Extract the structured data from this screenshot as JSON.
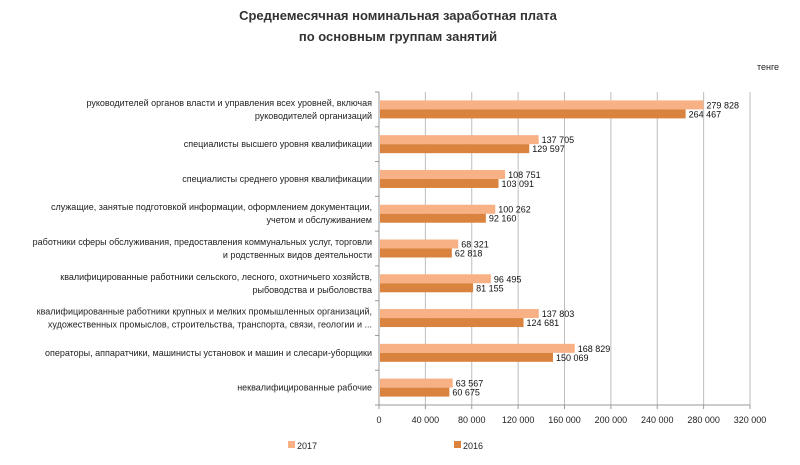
{
  "chart_data": {
    "type": "bar",
    "orientation": "horizontal",
    "title": [
      "Среднемесячная номинальная  заработная плата",
      "по основным группам занятий"
    ],
    "unit_label": "тенге",
    "categories": [
      [
        "руководителей органов власти и управления всех уровней, включая",
        "руководителей организаций"
      ],
      [
        "специалисты высшего уровня квалификации"
      ],
      [
        "специалисты среднего уровня квалификации"
      ],
      [
        "служащие, занятые подготовкой информации, оформлением документации,",
        "учетом и обслуживанием"
      ],
      [
        "работники сферы обслуживания, предоставления коммунальных услуг, торговли",
        "и родственных видов деятельности"
      ],
      [
        "квалифицированные работники сельского, лесного, охотничьего хозяйств,",
        "рыбоводства и рыболовства"
      ],
      [
        "квалифицированные работники крупных и мелких промышленных организаций,",
        "художественных промыслов, строительства, транспорта, связи, геологии и ..."
      ],
      [
        "операторы, аппаратчики, машинисты установок и машин и слесари-уборщики"
      ],
      [
        "неквалифицированные рабочие"
      ]
    ],
    "series": [
      {
        "name": "2017",
        "color": "#F8B185",
        "values": [
          279828,
          137705,
          108751,
          100262,
          68321,
          96495,
          137803,
          168829,
          63567
        ],
        "labels": [
          "279 828",
          "137 705",
          "108 751",
          "100 262",
          "68 321",
          "96 495",
          "137 803",
          "168 829",
          "63 567"
        ]
      },
      {
        "name": "2016",
        "color": "#D9833E",
        "values": [
          264467,
          129597,
          103091,
          92160,
          62818,
          81155,
          124681,
          150069,
          60675
        ],
        "labels": [
          "264 467",
          "129 597",
          "103 091",
          "92 160",
          "62 818",
          "81 155",
          "124 681",
          "150 069",
          "60 675"
        ]
      }
    ],
    "xlim": [
      0,
      320000
    ],
    "xticks": [
      0,
      40000,
      80000,
      120000,
      160000,
      200000,
      240000,
      280000,
      320000
    ],
    "xtick_labels": [
      "0",
      "40 000",
      "80 000",
      "120 000",
      "160 000",
      "200 000",
      "240 000",
      "280 000",
      "320 000"
    ],
    "grid": "vertical",
    "legend": "bottom"
  }
}
